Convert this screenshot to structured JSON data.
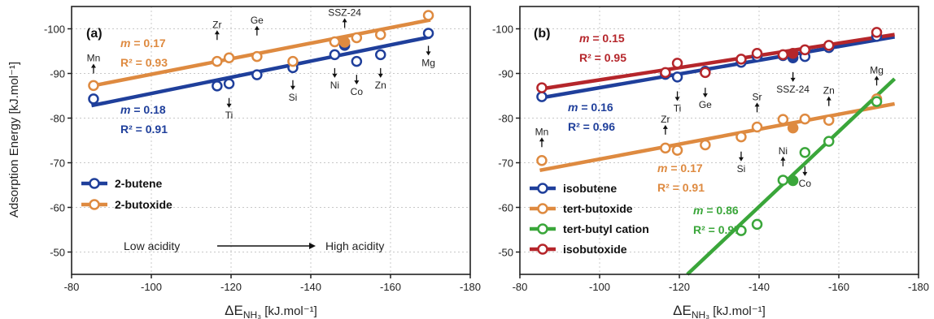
{
  "colors": {
    "blue": "#1f3f9b",
    "orange": "#de8a40",
    "green": "#3aa63a",
    "red": "#b5262b",
    "grid": "#c8c8c8",
    "axis": "#222222"
  },
  "ylabel": "Adsorption Energy [kJ.mol⁻¹]",
  "chart_data": [
    {
      "type": "scatter",
      "panel": "(a)",
      "xlabel": "ΔE",
      "xlabel_sub": "NH₃",
      "xlabel_unit": " [kJ.mol⁻¹]",
      "xlim": [
        -80,
        -180
      ],
      "ylim": [
        -45,
        -105
      ],
      "xticks": [
        -80,
        -100,
        -120,
        -140,
        -160,
        -180
      ],
      "yticks": [
        -50,
        -60,
        -70,
        -80,
        -90,
        -100
      ],
      "series": [
        {
          "name": "2-butene",
          "color": "blue",
          "points": [
            [
              -85.5,
              -84.3
            ],
            [
              -116.5,
              -87.2
            ],
            [
              -119.5,
              -87.7
            ],
            [
              -126.5,
              -89.7
            ],
            [
              -135.5,
              -91.3
            ],
            [
              -146,
              -94.2
            ],
            [
              -148.5,
              -96.3
            ],
            [
              -151.5,
              -92.7
            ],
            [
              -157.5,
              -94.2
            ],
            [
              -169.5,
              -99
            ]
          ],
          "filled_index": 6,
          "fit": {
            "x": [
              -85,
              -170
            ],
            "y": [
              -82.8,
              -98.2
            ]
          },
          "m": "m = 0.18",
          "r2": "R² = 0.91"
        },
        {
          "name": "2-butoxide",
          "color": "orange",
          "points": [
            [
              -85.5,
              -87.3
            ],
            [
              -116.5,
              -92.7
            ],
            [
              -119.5,
              -93.5
            ],
            [
              -126.5,
              -93.8
            ],
            [
              -135.5,
              -92.7
            ],
            [
              -146,
              -97.1
            ],
            [
              -148.5,
              -97
            ],
            [
              -151.5,
              -98
            ],
            [
              -157.5,
              -98.7
            ],
            [
              -169.5,
              -103
            ]
          ],
          "filled_index": 6,
          "fit": {
            "x": [
              -85,
              -170
            ],
            "y": [
              -87.2,
              -102
            ]
          },
          "m": "m = 0.17",
          "r2": "R² = 0.93"
        }
      ],
      "annotations": [
        {
          "label": "Mn",
          "x": -85.5,
          "y": -90,
          "dir": "up"
        },
        {
          "label": "Zr",
          "x": -116.5,
          "y": -97.5,
          "dir": "up"
        },
        {
          "label": "Ge",
          "x": -126.5,
          "y": -98.5,
          "dir": "up"
        },
        {
          "label": "SSZ-24",
          "x": -148.5,
          "y": -100.2,
          "dir": "up"
        },
        {
          "label": "Ti",
          "x": -119.5,
          "y": -84.5,
          "dir": "down"
        },
        {
          "label": "Si",
          "x": -135.5,
          "y": -88.5,
          "dir": "down"
        },
        {
          "label": "Ni",
          "x": -146,
          "y": -91.2,
          "dir": "down"
        },
        {
          "label": "Co",
          "x": -151.5,
          "y": -89.7,
          "dir": "down"
        },
        {
          "label": "Zn",
          "x": -157.5,
          "y": -91.2,
          "dir": "down"
        },
        {
          "label": "Mg",
          "x": -169.5,
          "y": -96.2,
          "dir": "down"
        }
      ],
      "flow": {
        "left": "Low acidity",
        "right": "High acidity"
      }
    },
    {
      "type": "scatter",
      "panel": "(b)",
      "xlabel": "ΔE",
      "xlabel_sub": "NH₃",
      "xlabel_unit": " [kJ.mol⁻¹]",
      "xlim": [
        -80,
        -180
      ],
      "ylim": [
        -45,
        -105
      ],
      "xticks": [
        -80,
        -100,
        -120,
        -140,
        -160,
        -180
      ],
      "yticks": [
        -50,
        -60,
        -70,
        -80,
        -90,
        -100
      ],
      "series": [
        {
          "name": "isobutene",
          "color": "blue",
          "points": [
            [
              -85.5,
              -84.8
            ],
            [
              -116.5,
              -89.8
            ],
            [
              -119.5,
              -89.2
            ],
            [
              -126.5,
              -90.5
            ],
            [
              -135.5,
              -92.5
            ],
            [
              -139.5,
              -93.8
            ],
            [
              -146,
              -94
            ],
            [
              -148.5,
              -93.5
            ],
            [
              -151.5,
              -93.8
            ],
            [
              -157.5,
              -95.8
            ],
            [
              -169.5,
              -98.3
            ]
          ],
          "filled_index": 7,
          "fit": {
            "x": [
              -85,
              -174
            ],
            "y": [
              -84.5,
              -98.2
            ]
          },
          "m": "m = 0.16",
          "r2": "R² = 0.96"
        },
        {
          "name": "tert-butoxide",
          "color": "orange",
          "points": [
            [
              -85.5,
              -70.5
            ],
            [
              -116.5,
              -73.3
            ],
            [
              -119.5,
              -72.8
            ],
            [
              -126.5,
              -74
            ],
            [
              -135.5,
              -75.8
            ],
            [
              -139.5,
              -78
            ],
            [
              -146,
              -79.7
            ],
            [
              -148.5,
              -77.8
            ],
            [
              -151.5,
              -79.8
            ],
            [
              -157.5,
              -79.5
            ],
            [
              -169.5,
              -84.3
            ]
          ],
          "filled_index": 7,
          "fit": {
            "x": [
              -85,
              -174
            ],
            "y": [
              -68.3,
              -83.2
            ]
          },
          "m": "m = 0.17",
          "r2": "R² = 0.91"
        },
        {
          "name": "tert-butyl cation",
          "color": "green",
          "points": [
            [
              -135.5,
              -54.8
            ],
            [
              -139.5,
              -56.2
            ],
            [
              -146,
              -66.1
            ],
            [
              -148.5,
              -66
            ],
            [
              -151.5,
              -72.3
            ],
            [
              -157.5,
              -74.8
            ],
            [
              -169.5,
              -83.7
            ]
          ],
          "filled_index": 3,
          "fit": {
            "x": [
              -122,
              -174
            ],
            "y": [
              -45,
              -88.8
            ]
          },
          "m": "m = 0.86",
          "r2": "R² = 0.97"
        },
        {
          "name": "isobutoxide",
          "color": "red",
          "points": [
            [
              -85.5,
              -86.8
            ],
            [
              -116.5,
              -90.2
            ],
            [
              -119.5,
              -92.3
            ],
            [
              -126.5,
              -90.2
            ],
            [
              -135.5,
              -93.2
            ],
            [
              -139.5,
              -94.5
            ],
            [
              -146,
              -94.2
            ],
            [
              -148.5,
              -94.5
            ],
            [
              -151.5,
              -95.3
            ],
            [
              -157.5,
              -96.3
            ],
            [
              -169.5,
              -99.2
            ]
          ],
          "filled_index": 7,
          "fit": {
            "x": [
              -85,
              -174
            ],
            "y": [
              -86.5,
              -98.7
            ]
          },
          "m": "m = 0.15",
          "r2": "R² = 0.95"
        }
      ],
      "annotations": [
        {
          "label": "Ti",
          "x": -119.5,
          "y": -86,
          "dir": "down"
        },
        {
          "label": "Ge",
          "x": -126.5,
          "y": -86.8,
          "dir": "down"
        },
        {
          "label": "SSZ-24",
          "x": -148.5,
          "y": -90.3,
          "dir": "down"
        },
        {
          "label": "Mg",
          "x": -169.5,
          "y": -87.3,
          "dir": "up"
        },
        {
          "label": "Mn",
          "x": -85.5,
          "y": -73.5,
          "dir": "up"
        },
        {
          "label": "Zr",
          "x": -116.5,
          "y": -76.3,
          "dir": "up"
        },
        {
          "label": "Sr",
          "x": -139.5,
          "y": -81.3,
          "dir": "up"
        },
        {
          "label": "Zn",
          "x": -157.5,
          "y": -82.7,
          "dir": "up"
        },
        {
          "label": "Si",
          "x": -135.5,
          "y": -72.5,
          "dir": "down"
        },
        {
          "label": "Ni",
          "x": -146,
          "y": -69.2,
          "dir": "up"
        },
        {
          "label": "Co",
          "x": -151.5,
          "y": -69.2,
          "dir": "down"
        }
      ]
    }
  ]
}
